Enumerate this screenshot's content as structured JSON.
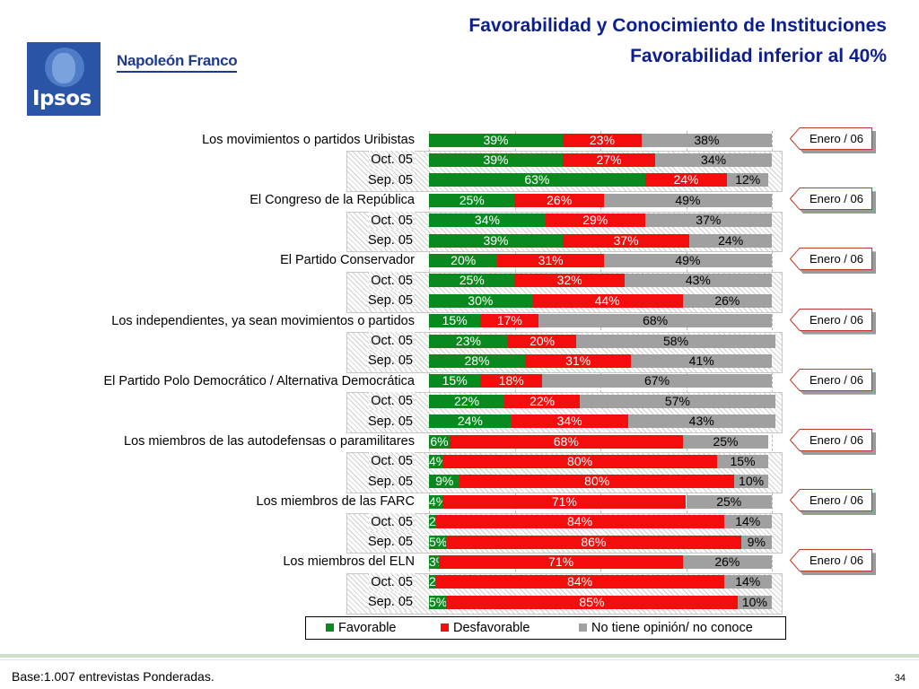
{
  "header": {
    "brand": "Napoleón Franco",
    "logo_text": "Ipsos",
    "title_line1": "Favorabilidad y Conocimiento de Instituciones",
    "title_line2": "Favorabilidad inferior al 40%"
  },
  "colors": {
    "favorable": "#0a8a1e",
    "desfavorable": "#f30d0d",
    "no_opinion": "#a0a0a0",
    "title": "#0d1f8f"
  },
  "chart_data": {
    "type": "bar",
    "orientation": "horizontal-stacked-100",
    "xlim": [
      0,
      100
    ],
    "grid": true,
    "legend_position": "bottom",
    "series_names": [
      "Favorable",
      "Desfavorable",
      "No tiene opinión/ no conoce"
    ],
    "groups": [
      {
        "label": "Los movimientos o partidos Uribistas",
        "tag": "Enero / 06",
        "rows": [
          {
            "label": "",
            "values": [
              39,
              23,
              38
            ],
            "labels": [
              "39%",
              "23%",
              "38%"
            ]
          },
          {
            "label": "Oct. 05",
            "values": [
              39,
              27,
              34
            ],
            "labels": [
              "39%",
              "27%",
              "34%"
            ]
          },
          {
            "label": "Sep. 05",
            "values": [
              63,
              24,
              12
            ],
            "labels": [
              "63%",
              "24%",
              "12%"
            ]
          }
        ]
      },
      {
        "label": "El Congreso de la República",
        "tag": "Enero / 06",
        "rows": [
          {
            "label": "",
            "values": [
              25,
              26,
              49
            ],
            "labels": [
              "25%",
              "26%",
              "49%"
            ]
          },
          {
            "label": "Oct. 05",
            "values": [
              34,
              29,
              37
            ],
            "labels": [
              "34%",
              "29%",
              "37%"
            ]
          },
          {
            "label": "Sep. 05",
            "values": [
              39,
              37,
              24
            ],
            "labels": [
              "39%",
              "37%",
              "24%"
            ]
          }
        ]
      },
      {
        "label": "El Partido Conservador",
        "tag": "Enero / 06",
        "rows": [
          {
            "label": "",
            "values": [
              20,
              31,
              49
            ],
            "labels": [
              "20%",
              "31%",
              "49%"
            ]
          },
          {
            "label": "Oct. 05",
            "values": [
              25,
              32,
              43
            ],
            "labels": [
              "25%",
              "32%",
              "43%"
            ]
          },
          {
            "label": "Sep. 05",
            "values": [
              30,
              44,
              26
            ],
            "labels": [
              "30%",
              "44%",
              "26%"
            ]
          }
        ]
      },
      {
        "label": "Los independientes, ya sean movimientos o partidos",
        "tag": "Enero / 06",
        "rows": [
          {
            "label": "",
            "values": [
              15,
              17,
              68
            ],
            "labels": [
              "15%",
              "17%",
              "68%"
            ]
          },
          {
            "label": "Oct. 05",
            "values": [
              23,
              20,
              58
            ],
            "labels": [
              "23%",
              "20%",
              "58%"
            ]
          },
          {
            "label": "Sep. 05",
            "values": [
              28,
              31,
              41
            ],
            "labels": [
              "28%",
              "31%",
              "41%"
            ]
          }
        ]
      },
      {
        "label": "El Partido Polo Democrático / Alternativa Democrática",
        "tag": "Enero / 06",
        "rows": [
          {
            "label": "",
            "values": [
              15,
              18,
              67
            ],
            "labels": [
              "15%",
              "18%",
              "67%"
            ]
          },
          {
            "label": "Oct. 05",
            "values": [
              22,
              22,
              57
            ],
            "labels": [
              "22%",
              "22%",
              "57%"
            ]
          },
          {
            "label": "Sep. 05",
            "values": [
              24,
              34,
              43
            ],
            "labels": [
              "24%",
              "34%",
              "43%"
            ]
          }
        ]
      },
      {
        "label": "Los miembros de las autodefensas o paramilitares",
        "tag": "Enero / 06",
        "rows": [
          {
            "label": "",
            "values": [
              6,
              68,
              25
            ],
            "labels": [
              "6%",
              "68%",
              "25%"
            ]
          },
          {
            "label": "Oct. 05",
            "values": [
              4,
              80,
              15
            ],
            "labels": [
              "4%",
              "80%",
              "15%"
            ]
          },
          {
            "label": "Sep. 05",
            "values": [
              9,
              80,
              10
            ],
            "labels": [
              "9%",
              "80%",
              "10%"
            ]
          }
        ]
      },
      {
        "label": "Los miembros de las FARC",
        "tag": "Enero / 06",
        "rows": [
          {
            "label": "",
            "values": [
              4,
              71,
              25
            ],
            "labels": [
              "4%",
              "71%",
              "25%"
            ]
          },
          {
            "label": "Oct. 05",
            "values": [
              2,
              84,
              14
            ],
            "labels": [
              "2%",
              "84%",
              "14%"
            ]
          },
          {
            "label": "Sep. 05",
            "values": [
              5,
              86,
              9
            ],
            "labels": [
              "5%",
              "86%",
              "9%"
            ]
          }
        ]
      },
      {
        "label": "Los miembros del ELN",
        "tag": "Enero / 06",
        "rows": [
          {
            "label": "",
            "values": [
              3,
              71,
              26
            ],
            "labels": [
              "3%",
              "71%",
              "26%"
            ]
          },
          {
            "label": "Oct. 05",
            "values": [
              2,
              84,
              14
            ],
            "labels": [
              "2%",
              "84%",
              "14%"
            ]
          },
          {
            "label": "Sep. 05",
            "values": [
              5,
              85,
              10
            ],
            "labels": [
              "5%",
              "85%",
              "10%"
            ]
          }
        ]
      }
    ]
  },
  "legend": {
    "favorable": "Favorable",
    "desfavorable": "Desfavorable",
    "no_opinion": "No tiene opinión/ no conoce"
  },
  "footer": {
    "note": "Base:1.007 entrevistas Ponderadas.",
    "page": "34"
  }
}
